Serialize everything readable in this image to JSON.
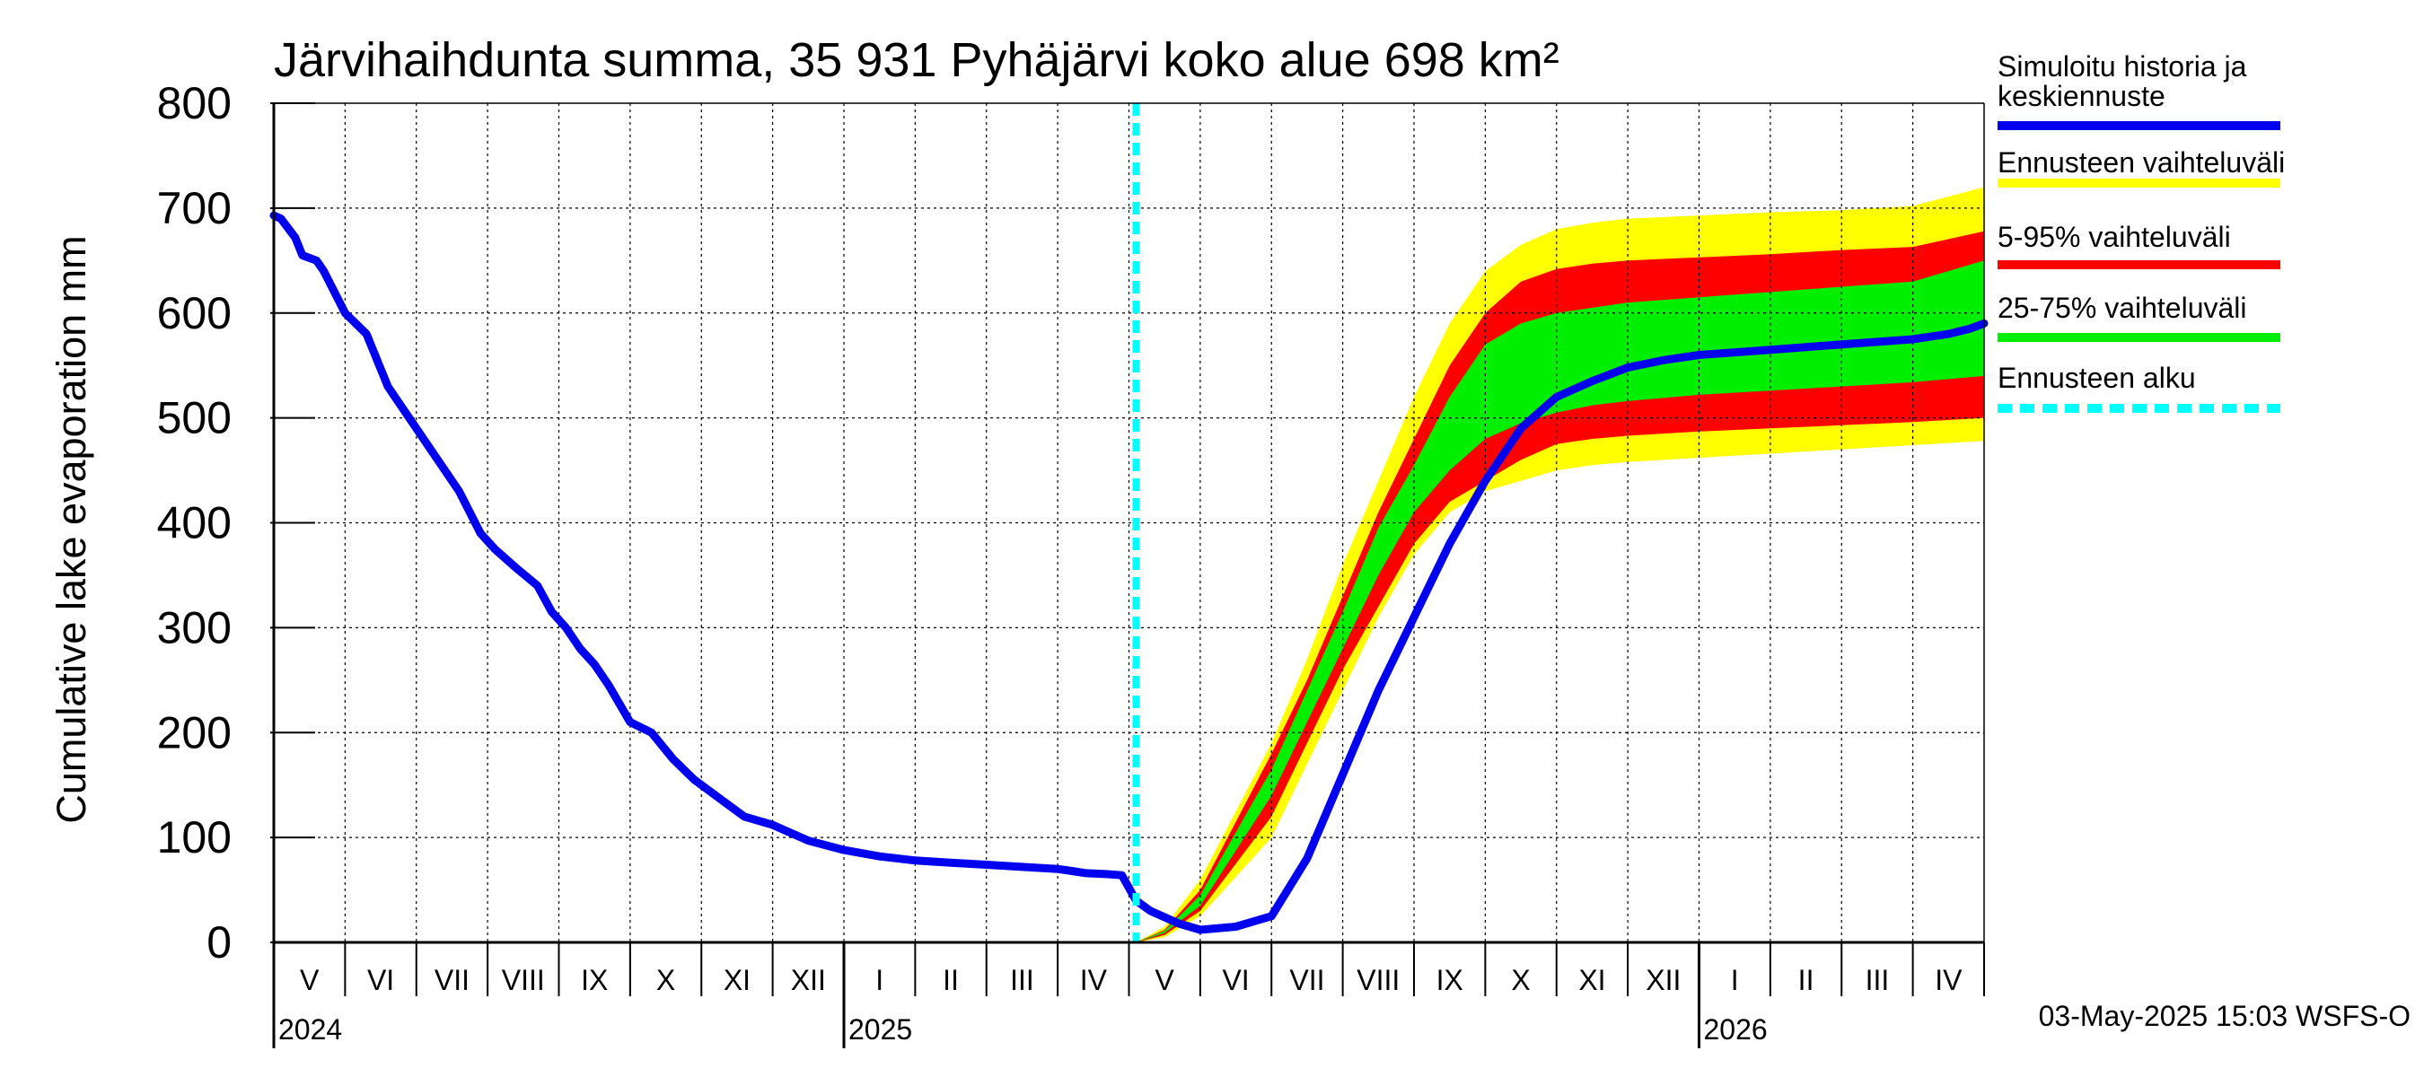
{
  "chart_data": {
    "type": "area",
    "title": "Järvihaihdunta summa, 35 931 Pyhäjärvi koko alue 698 km²",
    "ylabel": "Cumulative lake evaporation   mm",
    "xlabel": "",
    "ylim": [
      0,
      800
    ],
    "y_ticks": [
      "0",
      "100",
      "200",
      "300",
      "400",
      "500",
      "600",
      "700",
      "800"
    ],
    "x_range_months": [
      0,
      24
    ],
    "month_labels": [
      "V",
      "VI",
      "VII",
      "VIII",
      "IX",
      "X",
      "XI",
      "XII",
      "I",
      "II",
      "III",
      "IV",
      "V",
      "VI",
      "VII",
      "VIII",
      "IX",
      "X",
      "XI",
      "XII",
      "I",
      "II",
      "III",
      "IV"
    ],
    "year_labels": [
      {
        "label": "2024",
        "month_index": 0
      },
      {
        "label": "2025",
        "month_index": 8
      },
      {
        "label": "2026",
        "month_index": 20
      }
    ],
    "forecast_start_month": 12.1,
    "grid": true,
    "legend_position": "right",
    "series": [
      {
        "name": "Simuloitu historia ja keskiennuste",
        "color": "#0000ee",
        "x": [
          0,
          0.1,
          0.3,
          0.4,
          0.6,
          0.7,
          1.0,
          1.3,
          1.6,
          1.9,
          2.1,
          2.3,
          2.6,
          2.9,
          3.1,
          3.4,
          3.7,
          3.9,
          4.1,
          4.3,
          4.5,
          4.7,
          5.0,
          5.3,
          5.6,
          5.9,
          6.3,
          6.6,
          7.0,
          7.5,
          8.0,
          8.5,
          9.0,
          9.5,
          10.0,
          10.5,
          11.0,
          11.2,
          11.4,
          11.7,
          11.9,
          12.1,
          12.3,
          12.7,
          13.0,
          13.5,
          14.0,
          14.5,
          15.0,
          15.5,
          16.0,
          16.5,
          17.0,
          17.5,
          18.0,
          18.5,
          19.0,
          19.5,
          20.0,
          21.0,
          22.0,
          23.0,
          23.5,
          23.8,
          24.0
        ],
        "y": [
          693,
          690,
          672,
          655,
          650,
          640,
          600,
          580,
          530,
          500,
          480,
          460,
          430,
          390,
          375,
          357,
          340,
          315,
          300,
          280,
          265,
          245,
          210,
          200,
          175,
          155,
          135,
          120,
          112,
          97,
          88,
          82,
          78,
          76,
          74,
          72,
          70,
          68,
          66,
          65,
          64,
          40,
          30,
          18,
          12,
          15,
          25,
          80,
          160,
          240,
          310,
          380,
          440,
          490,
          520,
          535,
          548,
          555,
          560,
          565,
          570,
          575,
          580,
          585,
          590
        ]
      },
      {
        "name": "Ennusteen vaihteluväli",
        "color": "#ffff00",
        "x": [
          12.1,
          12.5,
          13.0,
          14.0,
          14.5,
          15.0,
          15.5,
          16.0,
          16.5,
          17.0,
          17.5,
          18.0,
          18.5,
          19.0,
          20.0,
          21.0,
          22.0,
          23.0,
          24.0
        ],
        "upper": [
          0,
          15,
          60,
          190,
          270,
          360,
          440,
          520,
          590,
          640,
          665,
          680,
          686,
          690,
          693,
          696,
          698,
          702,
          720
        ],
        "lower": [
          0,
          5,
          25,
          100,
          170,
          240,
          310,
          370,
          410,
          430,
          440,
          450,
          455,
          458,
          462,
          466,
          470,
          474,
          478
        ]
      },
      {
        "name": "5-95% vaihteluväli",
        "color": "#ff0000",
        "x": [
          12.1,
          12.5,
          13.0,
          14.0,
          14.5,
          15.0,
          15.5,
          16.0,
          16.5,
          17.0,
          17.5,
          18.0,
          18.5,
          19.0,
          20.0,
          21.0,
          22.0,
          23.0,
          24.0
        ],
        "upper": [
          0,
          12,
          50,
          180,
          250,
          330,
          410,
          480,
          550,
          600,
          630,
          642,
          647,
          650,
          653,
          656,
          660,
          663,
          678
        ],
        "lower": [
          0,
          7,
          30,
          120,
          190,
          260,
          320,
          380,
          420,
          440,
          460,
          475,
          480,
          483,
          487,
          490,
          493,
          496,
          500
        ]
      },
      {
        "name": "25-75% vaihteluväli",
        "color": "#00ee00",
        "x": [
          12.1,
          12.5,
          13.0,
          14.0,
          14.5,
          15.0,
          15.5,
          16.0,
          16.5,
          17.0,
          17.5,
          18.0,
          18.5,
          19.0,
          20.0,
          21.0,
          22.0,
          23.0,
          24.0
        ],
        "upper": [
          0,
          11,
          45,
          165,
          240,
          315,
          395,
          455,
          520,
          570,
          590,
          600,
          605,
          610,
          615,
          620,
          625,
          630,
          650
        ],
        "lower": [
          0,
          9,
          35,
          140,
          210,
          280,
          350,
          410,
          450,
          480,
          495,
          505,
          512,
          516,
          522,
          526,
          530,
          534,
          540
        ]
      },
      {
        "name": "Ennusteen alku",
        "color": "#00ffff",
        "style": "dashed-vertical",
        "x_value": 12.1
      }
    ],
    "timestamp": "03-May-2025 15:03 WSFS-O"
  },
  "legend": {
    "items": [
      {
        "label_lines": [
          "Simuloitu historia ja",
          "keskiennuste"
        ],
        "color": "#0000ee",
        "style": "solid"
      },
      {
        "label_lines": [
          "Ennusteen vaihteluväli"
        ],
        "color": "#ffff00",
        "style": "solid"
      },
      {
        "label_lines": [
          "5-95% vaihteluväli"
        ],
        "color": "#ff0000",
        "style": "solid"
      },
      {
        "label_lines": [
          "25-75% vaihteluväli"
        ],
        "color": "#00ee00",
        "style": "solid"
      },
      {
        "label_lines": [
          "Ennusteen alku"
        ],
        "color": "#00ffff",
        "style": "dashed"
      }
    ]
  }
}
